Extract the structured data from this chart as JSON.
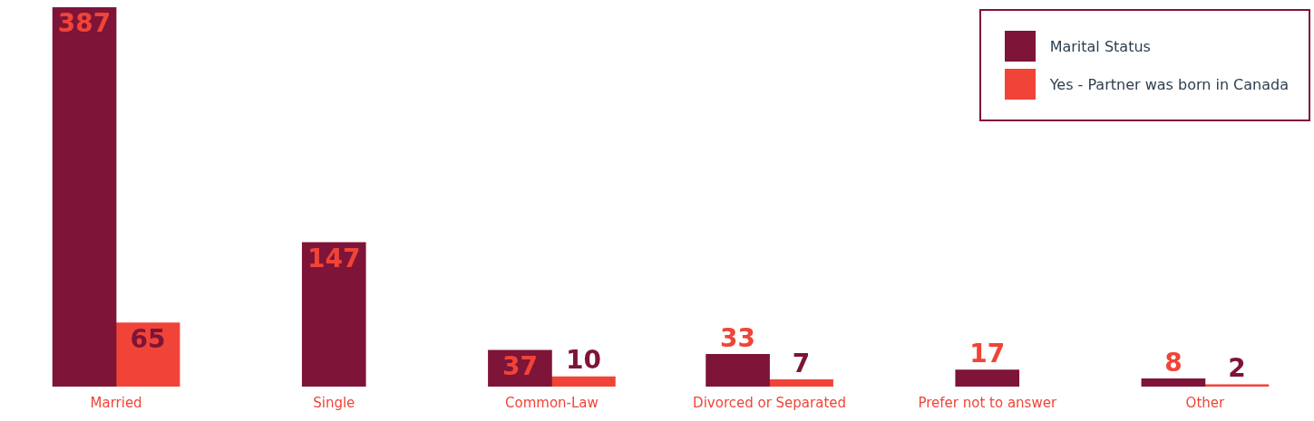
{
  "chart_data": {
    "type": "bar",
    "categories": [
      "Married",
      "Single",
      "Common-Law",
      "Divorced or Separated",
      "Prefer not to answer",
      "Other"
    ],
    "series": [
      {
        "name": "Marital Status",
        "color": "#7e1437",
        "values": [
          387,
          147,
          37,
          33,
          17,
          8
        ]
      },
      {
        "name": "Yes - Partner was born in Canada",
        "color": "#f04438",
        "values": [
          65,
          null,
          10,
          7,
          null,
          2
        ]
      }
    ],
    "data_labels": true,
    "legend": "top right",
    "grid": false
  }
}
